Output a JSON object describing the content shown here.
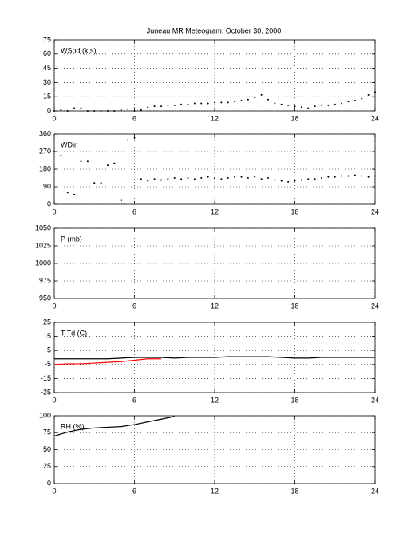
{
  "chart_data": [
    {
      "type": "scatter",
      "title": "Juneau MR Meteogram:    October 30, 2000",
      "ylabel": "WSpd (kts)",
      "x": [
        0,
        0.5,
        1,
        1.5,
        2,
        2.5,
        3,
        3.5,
        4,
        4.5,
        5,
        5.5,
        6,
        6.5,
        7,
        7.5,
        8,
        8.5,
        9,
        9.5,
        10,
        10.5,
        11,
        11.5,
        12,
        12.5,
        13,
        13.5,
        14,
        14.5,
        15,
        15.5,
        16,
        16.5,
        17,
        17.5,
        18,
        18.5,
        19,
        19.5,
        20,
        20.5,
        21,
        21.5,
        22,
        22.5,
        23,
        23.5,
        24
      ],
      "values": [
        0,
        1,
        0,
        3,
        3,
        0,
        0,
        0,
        0,
        0,
        1,
        2,
        0,
        1,
        4,
        5,
        5,
        6,
        6,
        7,
        7,
        8,
        8,
        8,
        9,
        9,
        9,
        10,
        11,
        12,
        14,
        17,
        12,
        8,
        7,
        6,
        5,
        4,
        3,
        5,
        6,
        6,
        7,
        8,
        10,
        11,
        13,
        17,
        20
      ],
      "color": "#000000",
      "xlim": [
        0,
        24
      ],
      "xticks": [
        0,
        6,
        12,
        18,
        24
      ],
      "ylim": [
        0,
        75
      ],
      "yticks": [
        0,
        15,
        30,
        45,
        60,
        75
      ],
      "grid": true
    },
    {
      "type": "scatter",
      "ylabel": "WDir",
      "x": [
        0,
        0.5,
        1,
        1.5,
        2,
        2.5,
        3,
        3.5,
        4,
        4.5,
        5,
        5.5,
        6,
        6.5,
        7,
        7.5,
        8,
        8.5,
        9,
        9.5,
        10,
        10.5,
        11,
        11.5,
        12,
        12.5,
        13,
        13.5,
        14,
        14.5,
        15,
        15.5,
        16,
        16.5,
        17,
        17.5,
        18,
        18.5,
        19,
        19.5,
        20,
        20.5,
        21,
        21.5,
        22,
        22.5,
        23,
        23.5,
        24
      ],
      "values": [
        270,
        250,
        60,
        50,
        220,
        220,
        110,
        110,
        200,
        210,
        20,
        330,
        340,
        130,
        120,
        130,
        125,
        130,
        135,
        130,
        135,
        130,
        135,
        140,
        135,
        130,
        135,
        140,
        140,
        135,
        140,
        130,
        135,
        125,
        120,
        115,
        120,
        125,
        130,
        130,
        135,
        140,
        140,
        145,
        145,
        150,
        145,
        140,
        145
      ],
      "color": "#000000",
      "xlim": [
        0,
        24
      ],
      "xticks": [
        0,
        6,
        12,
        18,
        24
      ],
      "ylim": [
        0,
        360
      ],
      "yticks": [
        0,
        90,
        180,
        270,
        360
      ],
      "grid": true
    },
    {
      "type": "line",
      "ylabel": "P (mb)",
      "xlim": [
        0,
        24
      ],
      "xticks": [
        0,
        6,
        12,
        18,
        24
      ],
      "ylim": [
        950,
        1050
      ],
      "yticks": [
        950,
        975,
        1000,
        1025,
        1050
      ],
      "grid": true
    },
    {
      "type": "line",
      "ylabel": "T Td (C)",
      "x": [
        0,
        1,
        2,
        3,
        4,
        5,
        6,
        7,
        8,
        9,
        10,
        11,
        12,
        13,
        14,
        15,
        16,
        17,
        18,
        19,
        20,
        21,
        22,
        23,
        24
      ],
      "series": [
        {
          "color": "#000000",
          "values": [
            -1,
            -1,
            -1,
            -1,
            -1,
            -0.5,
            0,
            0,
            0,
            -0.5,
            0,
            0,
            0,
            0.5,
            0.5,
            0.5,
            0.5,
            0,
            -0.5,
            -0.5,
            0,
            0,
            0,
            0,
            0
          ]
        },
        {
          "color": "#ff0000",
          "values": [
            -5,
            -4.5,
            -4.5,
            -4,
            -3.5,
            -3,
            -2,
            -1,
            -1,
            null,
            null,
            null,
            null,
            null,
            null,
            null,
            null,
            null,
            null,
            null,
            null,
            null,
            null,
            null,
            null
          ]
        }
      ],
      "xlim": [
        0,
        24
      ],
      "xticks": [
        0,
        6,
        12,
        18,
        24
      ],
      "ylim": [
        -25,
        25
      ],
      "yticks": [
        -25,
        -15,
        -5,
        5,
        15,
        25
      ],
      "grid": true
    },
    {
      "type": "line",
      "ylabel": "RH (%)",
      "x": [
        0,
        1,
        2,
        3,
        4,
        5,
        6,
        7,
        8,
        9,
        10,
        11,
        12,
        13,
        14,
        15,
        16,
        17,
        18,
        19,
        20,
        21,
        22,
        23,
        24
      ],
      "series": [
        {
          "color": "#000000",
          "values": [
            70,
            76,
            80,
            82,
            83,
            84,
            87,
            91,
            95,
            99,
            null,
            null,
            null,
            null,
            null,
            null,
            null,
            null,
            null,
            null,
            null,
            null,
            null,
            null,
            null
          ]
        }
      ],
      "xlim": [
        0,
        24
      ],
      "xticks": [
        0,
        6,
        12,
        18,
        24
      ],
      "ylim": [
        0,
        100
      ],
      "yticks": [
        0,
        25,
        50,
        75,
        100
      ],
      "grid": true
    }
  ]
}
